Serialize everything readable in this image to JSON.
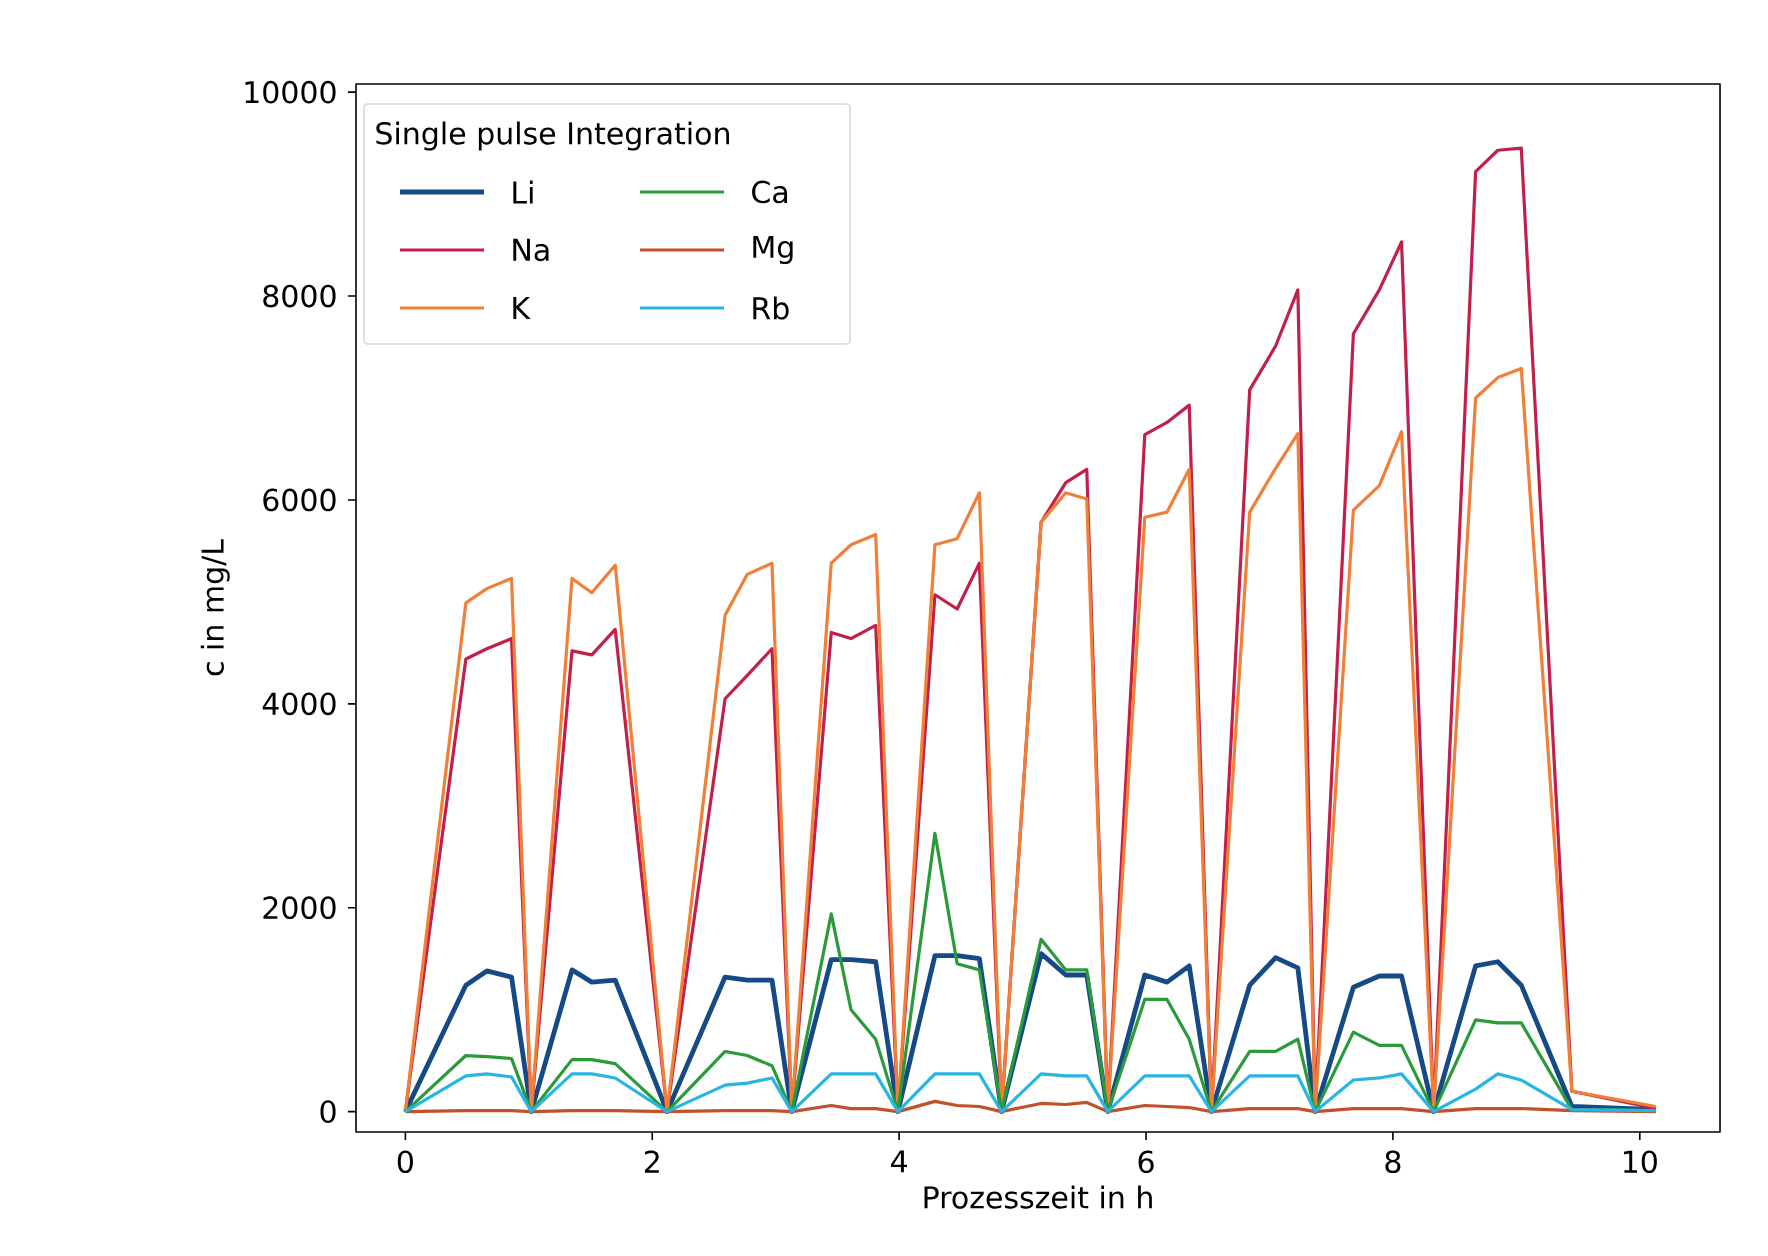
{
  "chart_data": {
    "type": "line",
    "xlabel": "Prozesszeit in h",
    "ylabel": "c in mg/L",
    "legend_title": "Single pulse Integration",
    "legend": "top left",
    "grid": false,
    "marker": "none",
    "line_style": "solid",
    "xlim": [
      -0.4,
      10.65
    ],
    "ylim": [
      -200,
      10080
    ],
    "xticks": [
      0,
      2,
      4,
      6,
      8,
      10
    ],
    "yticks": [
      0,
      2000,
      4000,
      6000,
      8000,
      10000
    ],
    "x": [
      0,
      0.49,
      0.66,
      0.86,
      1.02,
      1.35,
      1.51,
      1.7,
      2.12,
      2.59,
      2.77,
      2.97,
      3.13,
      3.45,
      3.61,
      3.81,
      3.99,
      4.29,
      4.47,
      4.65,
      4.83,
      5.15,
      5.35,
      5.52,
      5.69,
      5.99,
      6.17,
      6.35,
      6.53,
      6.84,
      7.05,
      7.23,
      7.37,
      7.68,
      7.89,
      8.07,
      8.33,
      8.67,
      8.85,
      9.04,
      9.45,
      10.13
    ],
    "series": [
      {
        "name": "Li",
        "color": "#154a86",
        "values": [
          0,
          1240,
          1380,
          1320,
          0,
          1390,
          1270,
          1290,
          0,
          1320,
          1290,
          1290,
          0,
          1490,
          1490,
          1470,
          0,
          1530,
          1530,
          1500,
          0,
          1550,
          1340,
          1340,
          0,
          1340,
          1270,
          1430,
          0,
          1240,
          1510,
          1410,
          0,
          1220,
          1330,
          1330,
          0,
          1430,
          1470,
          1240,
          50,
          20
        ]
      },
      {
        "name": "Na",
        "color": "#c0204a",
        "values": [
          0,
          4440,
          4540,
          4640,
          0,
          4520,
          4480,
          4730,
          0,
          4050,
          4280,
          4540,
          0,
          4700,
          4640,
          4770,
          0,
          5070,
          4930,
          5380,
          0,
          5780,
          6170,
          6300,
          0,
          6640,
          6760,
          6930,
          0,
          7080,
          7510,
          8060,
          0,
          7630,
          8060,
          8530,
          0,
          9220,
          9430,
          9450,
          200,
          30
        ]
      },
      {
        "name": "K",
        "color": "#f07f3a",
        "values": [
          0,
          4990,
          5130,
          5230,
          0,
          5230,
          5090,
          5360,
          0,
          4870,
          5270,
          5380,
          0,
          5380,
          5560,
          5660,
          0,
          5560,
          5620,
          6070,
          0,
          5780,
          6070,
          6010,
          0,
          5830,
          5880,
          6300,
          0,
          5880,
          6310,
          6650,
          0,
          5900,
          6140,
          6670,
          0,
          7000,
          7200,
          7290,
          200,
          50
        ]
      },
      {
        "name": "Ca",
        "color": "#2a9a3a",
        "values": [
          0,
          550,
          540,
          520,
          0,
          510,
          510,
          470,
          0,
          590,
          550,
          450,
          0,
          1940,
          1000,
          710,
          0,
          2730,
          1450,
          1390,
          0,
          1690,
          1390,
          1390,
          0,
          1100,
          1100,
          710,
          0,
          590,
          590,
          710,
          0,
          780,
          650,
          650,
          0,
          900,
          870,
          870,
          20,
          10
        ]
      },
      {
        "name": "Mg",
        "color": "#c0512a",
        "values": [
          0,
          10,
          10,
          10,
          0,
          10,
          10,
          10,
          0,
          10,
          10,
          10,
          0,
          60,
          30,
          30,
          0,
          100,
          60,
          50,
          0,
          80,
          70,
          90,
          0,
          60,
          50,
          40,
          0,
          30,
          30,
          30,
          0,
          30,
          30,
          30,
          0,
          30,
          30,
          30,
          10,
          0
        ]
      },
      {
        "name": "Rb",
        "color": "#27b5e5",
        "values": [
          0,
          350,
          370,
          340,
          0,
          370,
          370,
          330,
          0,
          260,
          280,
          330,
          0,
          370,
          370,
          370,
          0,
          370,
          370,
          370,
          0,
          370,
          350,
          350,
          0,
          350,
          350,
          350,
          0,
          350,
          350,
          350,
          0,
          310,
          330,
          370,
          0,
          220,
          370,
          310,
          20,
          10
        ]
      }
    ]
  }
}
